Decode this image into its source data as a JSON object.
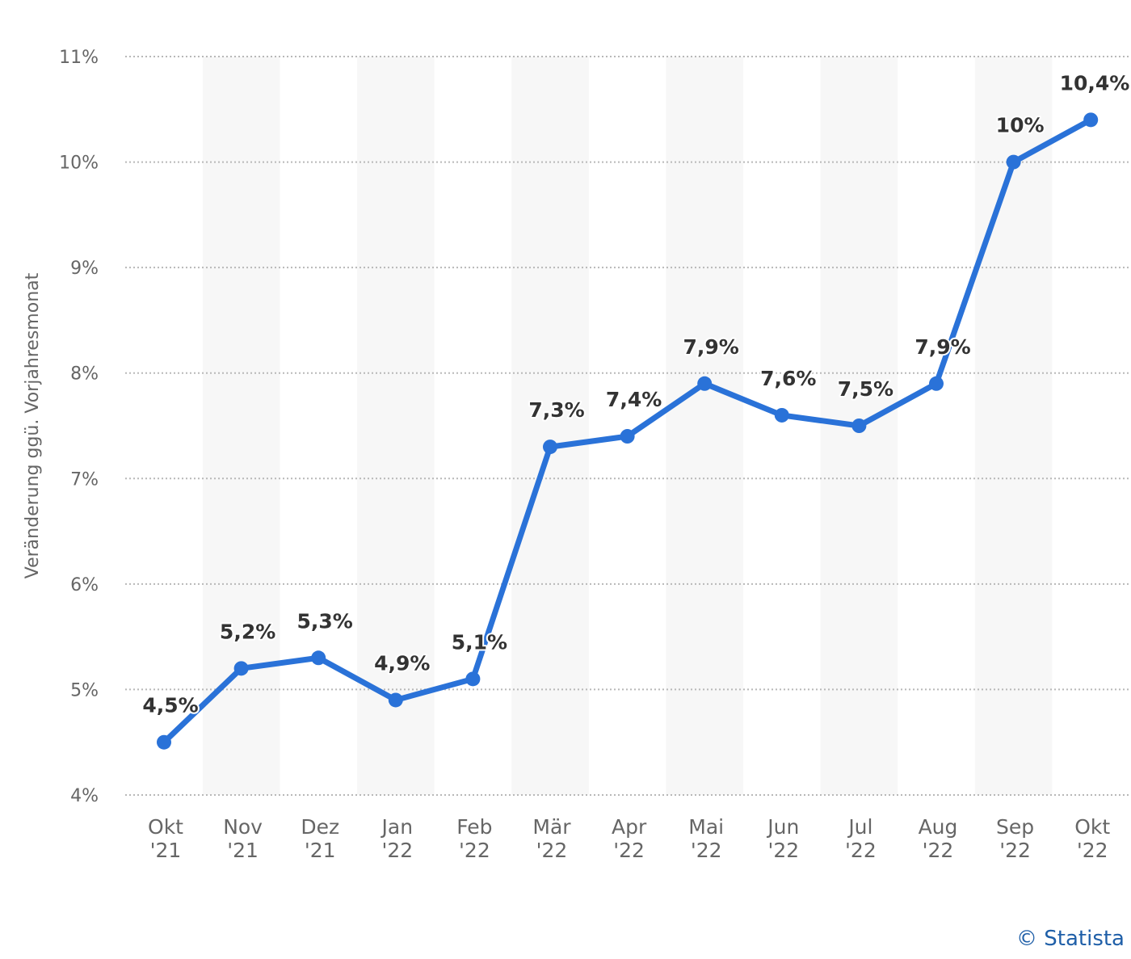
{
  "chart_data": {
    "type": "line",
    "title": "",
    "xlabel": "",
    "ylabel": "Veränderung ggü. Vorjahresmonat",
    "categories": [
      [
        "Okt",
        "'21"
      ],
      [
        "Nov",
        "'21"
      ],
      [
        "Dez",
        "'21"
      ],
      [
        "Jan",
        "'22"
      ],
      [
        "Feb",
        "'22"
      ],
      [
        "Mär",
        "'22"
      ],
      [
        "Apr",
        "'22"
      ],
      [
        "Mai",
        "'22"
      ],
      [
        "Jun",
        "'22"
      ],
      [
        "Jul",
        "'22"
      ],
      [
        "Aug",
        "'22"
      ],
      [
        "Sep",
        "'22"
      ],
      [
        "Okt",
        "'22"
      ]
    ],
    "values": [
      4.5,
      5.2,
      5.3,
      4.9,
      5.1,
      7.3,
      7.4,
      7.9,
      7.6,
      7.5,
      7.9,
      10.0,
      10.4
    ],
    "data_labels": [
      "4,5%",
      "5,2%",
      "5,3%",
      "4,9%",
      "5,1%",
      "7,3%",
      "7,4%",
      "7,9%",
      "7,6%",
      "7,5%",
      "7,9%",
      "10%",
      "10,4%"
    ],
    "ylim": [
      4,
      11
    ],
    "yticks": [
      {
        "value": 4,
        "label": "4%"
      },
      {
        "value": 5,
        "label": "5%"
      },
      {
        "value": 6,
        "label": "6%"
      },
      {
        "value": 7,
        "label": "7%"
      },
      {
        "value": 8,
        "label": "8%"
      },
      {
        "value": 9,
        "label": "9%"
      },
      {
        "value": 10,
        "label": "10%"
      },
      {
        "value": 11,
        "label": "11%"
      }
    ],
    "grid": true,
    "legend": "none",
    "line_color": "#2a72d8",
    "band_color": "#f7f7f7"
  },
  "credit": {
    "text": "© Statista"
  }
}
